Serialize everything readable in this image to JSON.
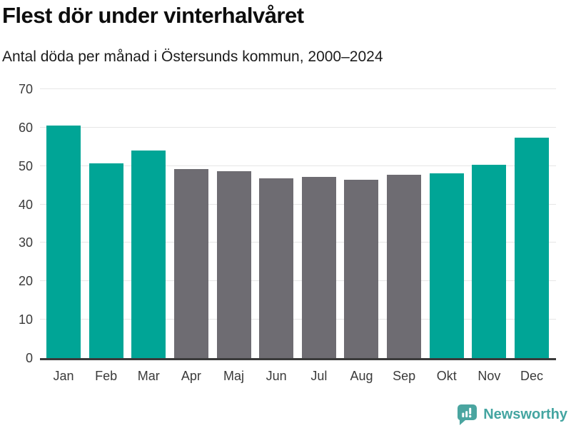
{
  "header": {
    "title": "Flest dör under vinterhalvåret",
    "subtitle": "Antal döda per månad i Östersunds kommun, 2000–2024"
  },
  "chart_data": {
    "type": "bar",
    "title": "Flest dör under vinterhalvåret",
    "subtitle": "Antal döda per månad i Östersunds kommun, 2000–2024",
    "categories": [
      "Jan",
      "Feb",
      "Mar",
      "Apr",
      "Maj",
      "Jun",
      "Jul",
      "Aug",
      "Sep",
      "Okt",
      "Nov",
      "Dec"
    ],
    "values": [
      60.5,
      50.7,
      54.0,
      49.2,
      48.6,
      46.8,
      47.2,
      46.4,
      47.8,
      48.1,
      50.4,
      57.4
    ],
    "bar_colors": [
      "#00a596",
      "#00a596",
      "#00a596",
      "#6e6c72",
      "#6e6c72",
      "#6e6c72",
      "#6e6c72",
      "#6e6c72",
      "#6e6c72",
      "#00a596",
      "#00a596",
      "#00a596"
    ],
    "winter_months": [
      "Jan",
      "Feb",
      "Mar",
      "Okt",
      "Nov",
      "Dec"
    ],
    "xlabel": "",
    "ylabel": "",
    "ylim": [
      0,
      70
    ],
    "yticks": [
      0,
      10,
      20,
      30,
      40,
      50,
      60,
      70
    ],
    "grid": true,
    "legend": "none",
    "palette": {
      "winter_bar": "#00a596",
      "summer_bar": "#6e6c72",
      "gridline": "#e6e6e6",
      "axis": "#3a3a3a",
      "brand": "#44a5a1"
    }
  },
  "footer": {
    "brand": "Newsworthy",
    "brand_color": "#44a5a1",
    "logo_icon": "bar-chart-speech-bubble"
  }
}
